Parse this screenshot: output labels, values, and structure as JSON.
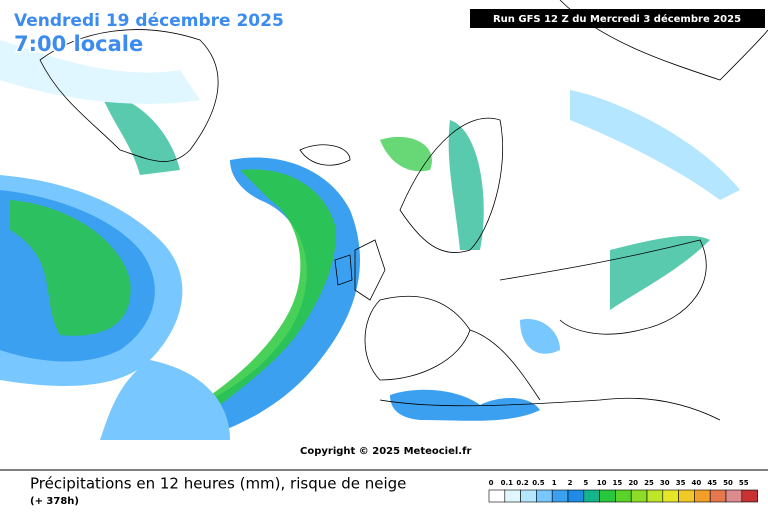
{
  "header": {
    "date": "Vendredi 19 décembre 2025",
    "time": "7:00 locale",
    "run": "Run GFS 12 Z du Mercredi 3 décembre 2025"
  },
  "map": {
    "copyright": "Copyright © 2025 Meteociel.fr"
  },
  "footer": {
    "title": "Précipitations en 12 heures (mm), risque de neige",
    "lead": "(+ 378h)"
  },
  "legend": {
    "items": [
      {
        "label": "0",
        "color": "#ffffff"
      },
      {
        "label": "0.1",
        "color": "#e1f7ff"
      },
      {
        "label": "0.2",
        "color": "#b4e6ff"
      },
      {
        "label": "0.5",
        "color": "#78c8ff"
      },
      {
        "label": "1",
        "color": "#3ca0f0"
      },
      {
        "label": "2",
        "color": "#1e8ce6"
      },
      {
        "label": "5",
        "color": "#14b48c"
      },
      {
        "label": "10",
        "color": "#28c83c"
      },
      {
        "label": "15",
        "color": "#5ad228"
      },
      {
        "label": "20",
        "color": "#8cdc28"
      },
      {
        "label": "25",
        "color": "#bee628"
      },
      {
        "label": "30",
        "color": "#e6e628"
      },
      {
        "label": "35",
        "color": "#f0c828"
      },
      {
        "label": "40",
        "color": "#f0a028"
      },
      {
        "label": "45",
        "color": "#e67850"
      },
      {
        "label": "50",
        "color": "#dc8c8c"
      },
      {
        "label": "55",
        "color": "#c83232"
      }
    ]
  }
}
